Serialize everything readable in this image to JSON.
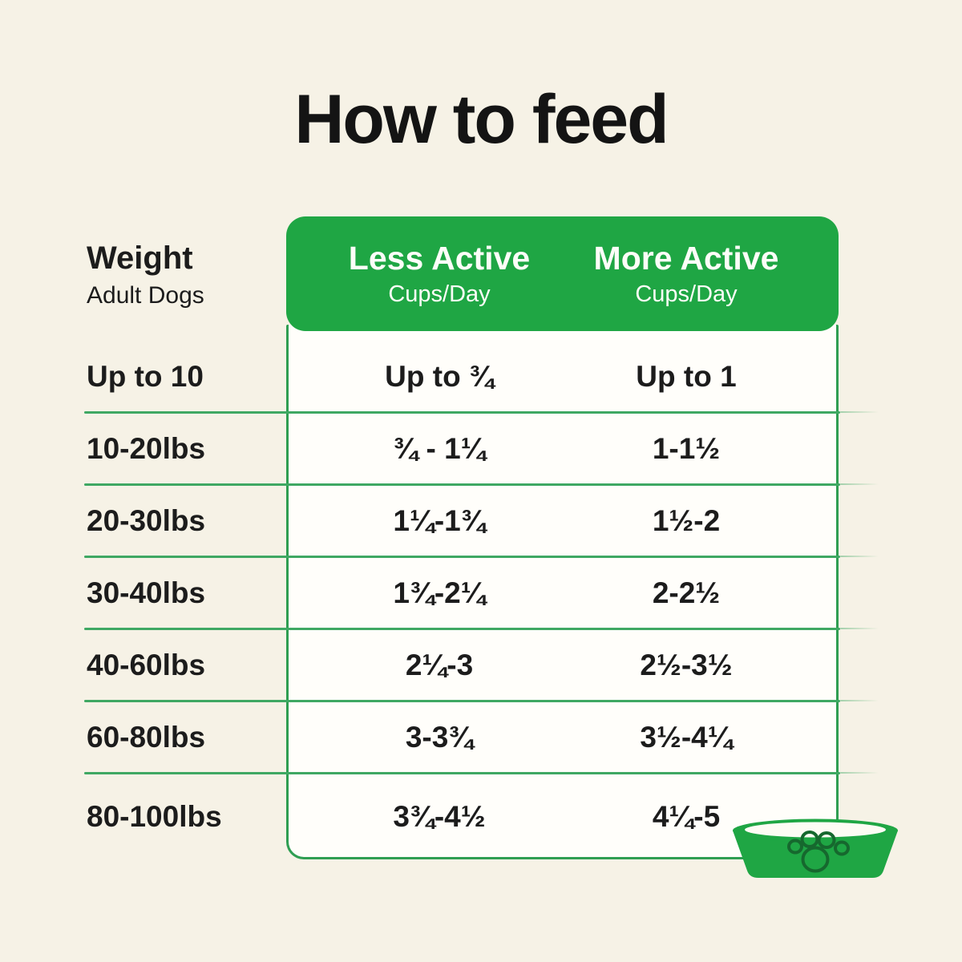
{
  "title": "How to feed",
  "weight_header": {
    "title": "Weight",
    "subtitle": "Adult Dogs"
  },
  "columns": [
    {
      "label": "Less Active",
      "sublabel": "Cups/Day"
    },
    {
      "label": "More Active",
      "sublabel": "Cups/Day"
    }
  ],
  "chart_data": {
    "type": "table",
    "title": "How to feed",
    "columns": [
      "Weight (Adult Dogs)",
      "Less Active (Cups/Day)",
      "More Active (Cups/Day)"
    ],
    "rows": [
      [
        "Up to 10",
        "Up to ¾",
        "Up to 1"
      ],
      [
        "10-20lbs",
        "¾ - 1¼",
        "1-1½"
      ],
      [
        "20-30lbs",
        "1¼-1¾",
        "1½-2"
      ],
      [
        "30-40lbs",
        "1¾-2¼",
        "2-2½"
      ],
      [
        "40-60lbs",
        "2¼-3",
        "2½-3½"
      ],
      [
        "60-80lbs",
        "3-3¾",
        "3½-4¼"
      ],
      [
        "80-100lbs",
        "3¾-4½",
        "4¼-5"
      ]
    ]
  },
  "icons": {
    "bowl": "dog-bowl-icon",
    "paw": "paw-print-icon"
  },
  "colors": {
    "background": "#f6f2e6",
    "accent_green": "#1fa644",
    "divider_green": "#3fa863",
    "panel_border_green": "#2f9e52",
    "paw_outline_green": "#16682e",
    "header_text": "#fdfdf8",
    "body_text": "#1c1c1c",
    "panel_background": "#fffefa"
  }
}
